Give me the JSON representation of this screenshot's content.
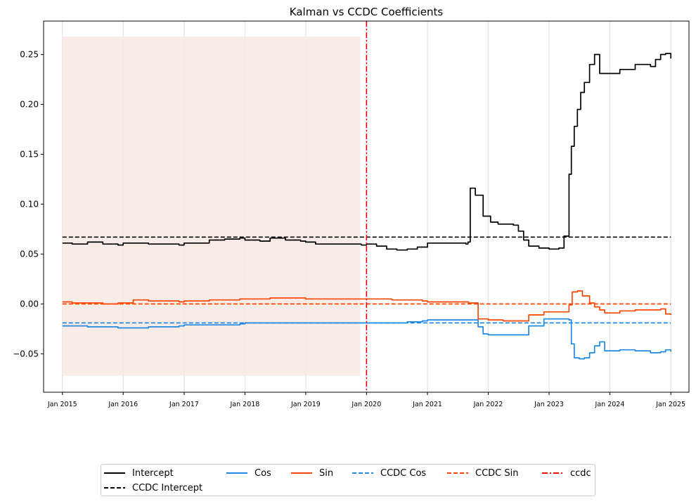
{
  "chart_data": {
    "type": "line",
    "title": "Kalman vs CCDC Coefficients",
    "xlabel": "",
    "ylabel": "",
    "xlim": [
      "2014-09-10",
      "2025-04-20"
    ],
    "ylim": [
      -0.0885,
      0.2835
    ],
    "yticks": [
      -0.05,
      0.0,
      0.05,
      0.1,
      0.15,
      0.2,
      0.25
    ],
    "ytick_labels": [
      "−0.05",
      "0.00",
      "0.05",
      "0.10",
      "0.15",
      "0.20",
      "0.25"
    ],
    "xticks": [
      "2015-01-01",
      "2016-01-01",
      "2017-01-01",
      "2018-01-01",
      "2019-01-01",
      "2020-01-01",
      "2021-01-01",
      "2022-01-01",
      "2023-01-01",
      "2024-01-01",
      "2025-01-01"
    ],
    "xtick_labels": [
      "Jan 2015",
      "Jan 2016",
      "Jan 2017",
      "Jan 2018",
      "Jan 2019",
      "Jan 2020",
      "Jan 2021",
      "Jan 2022",
      "Jan 2023",
      "Jan 2024",
      "Jan 2025"
    ],
    "grid": "vertical",
    "legend_position": "bottom-center",
    "shaded_region": {
      "x": [
        "2015-01-01",
        "2019-11-25"
      ],
      "y": [
        -0.072,
        0.268
      ],
      "color": "#f8e7e0"
    },
    "ccdc_break": "2020-01-01",
    "series": [
      {
        "name": "Intercept",
        "color": "#000000",
        "style": "solid",
        "x": [
          "2015-01-01",
          "2015-03-01",
          "2015-06-01",
          "2015-09-01",
          "2015-12-01",
          "2016-01-01",
          "2016-04-01",
          "2016-06-01",
          "2016-09-01",
          "2016-12-01",
          "2017-01-01",
          "2017-04-01",
          "2017-06-01",
          "2017-09-01",
          "2017-12-01",
          "2018-01-01",
          "2018-04-01",
          "2018-06-01",
          "2018-09-01",
          "2018-12-01",
          "2019-01-01",
          "2019-03-01",
          "2019-06-01",
          "2019-09-01",
          "2019-12-01",
          "2020-01-01",
          "2020-03-01",
          "2020-05-01",
          "2020-07-01",
          "2020-09-01",
          "2020-11-01",
          "2021-01-01",
          "2021-03-01",
          "2021-06-01",
          "2021-08-20",
          "2021-09-01",
          "2021-09-15",
          "2021-10-15",
          "2021-11-10",
          "2021-12-01",
          "2022-01-15",
          "2022-03-01",
          "2022-05-01",
          "2022-06-01",
          "2022-07-01",
          "2022-08-01",
          "2022-09-01",
          "2022-11-01",
          "2023-01-01",
          "2023-03-01",
          "2023-04-01",
          "2023-05-01",
          "2023-05-15",
          "2023-06-01",
          "2023-06-20",
          "2023-07-10",
          "2023-08-01",
          "2023-09-01",
          "2023-10-01",
          "2023-11-01",
          "2023-12-01",
          "2024-01-01",
          "2024-03-01",
          "2024-06-01",
          "2024-09-01",
          "2024-10-01",
          "2024-11-01",
          "2024-12-01",
          "2025-01-01"
        ],
        "y": [
          0.061,
          0.06,
          0.062,
          0.06,
          0.059,
          0.061,
          0.061,
          0.06,
          0.06,
          0.059,
          0.061,
          0.061,
          0.064,
          0.065,
          0.066,
          0.064,
          0.063,
          0.066,
          0.064,
          0.063,
          0.062,
          0.06,
          0.06,
          0.06,
          0.059,
          0.06,
          0.058,
          0.055,
          0.054,
          0.055,
          0.057,
          0.061,
          0.061,
          0.061,
          0.06,
          0.062,
          0.116,
          0.109,
          0.109,
          0.088,
          0.082,
          0.08,
          0.08,
          0.079,
          0.073,
          0.064,
          0.058,
          0.056,
          0.055,
          0.056,
          0.068,
          0.13,
          0.158,
          0.178,
          0.195,
          0.212,
          0.222,
          0.24,
          0.25,
          0.231,
          0.231,
          0.231,
          0.235,
          0.24,
          0.238,
          0.245,
          0.25,
          0.251,
          0.246
        ]
      },
      {
        "name": "CCDC Intercept",
        "color": "#000000",
        "style": "dashed",
        "x": [
          "2015-01-01",
          "2025-01-01"
        ],
        "y": [
          0.067,
          0.067
        ]
      },
      {
        "name": "Cos",
        "color": "#1e88e5",
        "style": "solid",
        "x": [
          "2015-01-01",
          "2015-03-01",
          "2015-06-01",
          "2015-09-01",
          "2015-12-01",
          "2016-06-01",
          "2016-12-01",
          "2017-01-01",
          "2017-06-01",
          "2017-12-01",
          "2018-01-01",
          "2018-06-01",
          "2018-12-01",
          "2019-01-01",
          "2019-06-01",
          "2019-12-01",
          "2020-01-01",
          "2020-06-01",
          "2020-09-01",
          "2020-12-01",
          "2021-01-01",
          "2021-06-01",
          "2021-09-01",
          "2021-10-01",
          "2021-11-01",
          "2021-12-01",
          "2022-01-01",
          "2022-03-01",
          "2022-06-01",
          "2022-09-01",
          "2022-12-01",
          "2023-01-01",
          "2023-04-01",
          "2023-05-01",
          "2023-05-15",
          "2023-06-01",
          "2023-07-01",
          "2023-08-01",
          "2023-09-01",
          "2023-10-01",
          "2023-11-01",
          "2023-12-01",
          "2024-01-01",
          "2024-03-01",
          "2024-06-01",
          "2024-09-01",
          "2024-11-01",
          "2024-12-01",
          "2025-01-01"
        ],
        "y": [
          -0.022,
          -0.022,
          -0.023,
          -0.023,
          -0.024,
          -0.023,
          -0.022,
          -0.021,
          -0.021,
          -0.02,
          -0.019,
          -0.019,
          -0.019,
          -0.019,
          -0.019,
          -0.019,
          -0.019,
          -0.019,
          -0.018,
          -0.017,
          -0.016,
          -0.016,
          -0.016,
          -0.016,
          -0.023,
          -0.03,
          -0.031,
          -0.031,
          -0.031,
          -0.022,
          -0.015,
          -0.015,
          -0.015,
          -0.016,
          -0.04,
          -0.054,
          -0.055,
          -0.054,
          -0.049,
          -0.042,
          -0.038,
          -0.047,
          -0.047,
          -0.046,
          -0.047,
          -0.049,
          -0.048,
          -0.046,
          -0.048
        ]
      },
      {
        "name": "Sin",
        "color": "#ff4500",
        "style": "solid",
        "x": [
          "2015-01-01",
          "2015-03-01",
          "2015-06-01",
          "2015-09-01",
          "2015-12-01",
          "2016-03-01",
          "2016-06-01",
          "2016-12-01",
          "2017-01-01",
          "2017-06-01",
          "2017-12-01",
          "2018-01-01",
          "2018-06-01",
          "2018-12-01",
          "2019-01-01",
          "2019-06-01",
          "2019-12-01",
          "2020-01-01",
          "2020-06-01",
          "2020-12-01",
          "2021-01-01",
          "2021-06-01",
          "2021-08-25",
          "2021-09-05",
          "2021-11-01",
          "2022-01-01",
          "2022-04-01",
          "2022-06-01",
          "2022-09-01",
          "2022-12-01",
          "2023-01-01",
          "2023-04-01",
          "2023-05-01",
          "2023-05-20",
          "2023-06-20",
          "2023-07-20",
          "2023-09-01",
          "2023-10-01",
          "2023-11-01",
          "2023-12-01",
          "2024-01-01",
          "2024-03-01",
          "2024-06-01",
          "2024-09-01",
          "2024-11-01",
          "2024-12-01",
          "2025-01-01"
        ],
        "y": [
          0.002,
          0.001,
          0.001,
          0.0,
          0.001,
          0.004,
          0.003,
          0.002,
          0.003,
          0.004,
          0.005,
          0.005,
          0.006,
          0.006,
          0.005,
          0.005,
          0.005,
          0.005,
          0.004,
          0.003,
          0.002,
          0.002,
          0.002,
          0.001,
          -0.015,
          -0.016,
          -0.017,
          -0.017,
          -0.011,
          -0.008,
          -0.008,
          -0.008,
          -0.001,
          0.012,
          0.013,
          0.008,
          0.001,
          -0.003,
          -0.006,
          -0.009,
          -0.009,
          -0.007,
          -0.006,
          -0.006,
          -0.005,
          -0.01,
          -0.011
        ]
      },
      {
        "name": "CCDC Cos",
        "color": "#1e88e5",
        "style": "dashed",
        "x": [
          "2015-01-01",
          "2025-01-01"
        ],
        "y": [
          -0.019,
          -0.019
        ]
      },
      {
        "name": "CCDC Sin",
        "color": "#ff4500",
        "style": "dashed",
        "x": [
          "2015-01-01",
          "2025-01-01"
        ],
        "y": [
          0.0,
          0.0
        ]
      },
      {
        "name": "ccdc",
        "color": "#ff0000",
        "style": "dashdot",
        "vertical_line": "2020-01-01"
      }
    ]
  }
}
